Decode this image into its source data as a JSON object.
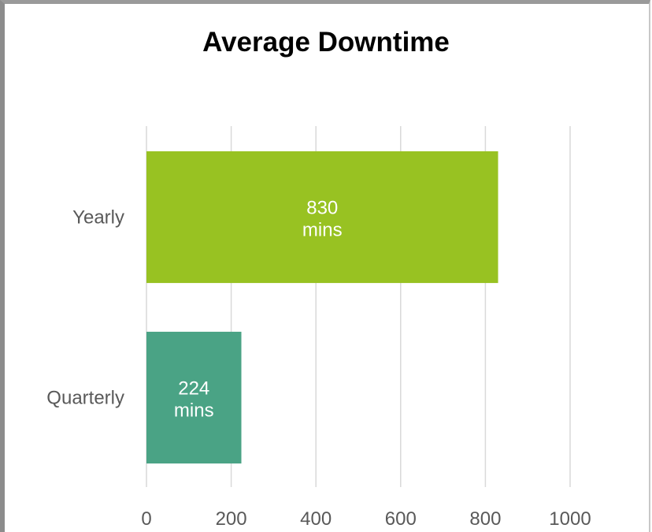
{
  "chart_data": {
    "type": "bar",
    "orientation": "horizontal",
    "title": "Average Downtime",
    "categories": [
      "Yearly",
      "Quarterly"
    ],
    "values": [
      830,
      224
    ],
    "data_labels": [
      {
        "value": "830",
        "unit": "mins"
      },
      {
        "value": "224",
        "unit": "mins"
      }
    ],
    "colors": [
      "#98c222",
      "#4aa385"
    ],
    "xlim": [
      0,
      1000
    ],
    "xticks": [
      0,
      200,
      400,
      600,
      800,
      1000
    ],
    "grid": "vertical",
    "legend": "none"
  }
}
